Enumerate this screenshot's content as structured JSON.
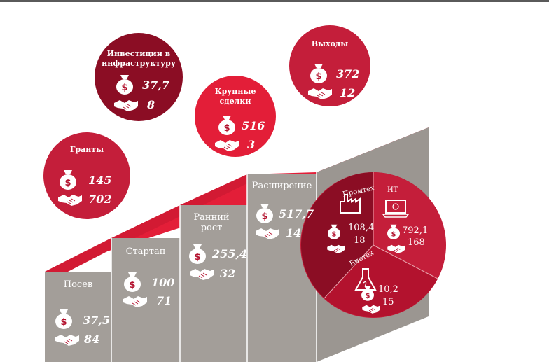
{
  "colors": {
    "wall": "#a39e99",
    "wall_dark": "#8d8884",
    "top_red": "#e31e38",
    "circle_red": "#c41e3a",
    "circle_dark": "#8b0d24",
    "circle_crimson": "#b3122e"
  },
  "icons": {
    "money": "money-bag-icon",
    "deals": "handshake-icon"
  },
  "steps": [
    {
      "label": "Посев",
      "amount": "37,5",
      "count": "84"
    },
    {
      "label": "Стартап",
      "amount": "100",
      "count": "71"
    },
    {
      "label": "Ранний рост",
      "amount": "255,4",
      "count": "32"
    },
    {
      "label": "Расширение",
      "amount": "517,7",
      "count": "14"
    }
  ],
  "circles": [
    {
      "label": "Гранты",
      "amount": "145",
      "count": "702"
    },
    {
      "label": "Инвестиции в инфраструктуру",
      "amount": "37,7",
      "count": "8"
    },
    {
      "label": "Крупные сделки",
      "amount": "516",
      "count": "3"
    },
    {
      "label": "Выходы",
      "amount": "372",
      "count": "12"
    }
  ],
  "sectors": [
    {
      "label": "Промтех",
      "amount": "108,4",
      "count": "18"
    },
    {
      "label": "ИТ",
      "amount": "792,1",
      "count": "168"
    },
    {
      "label": "Биотех",
      "amount": "10,2",
      "count": "15"
    }
  ]
}
